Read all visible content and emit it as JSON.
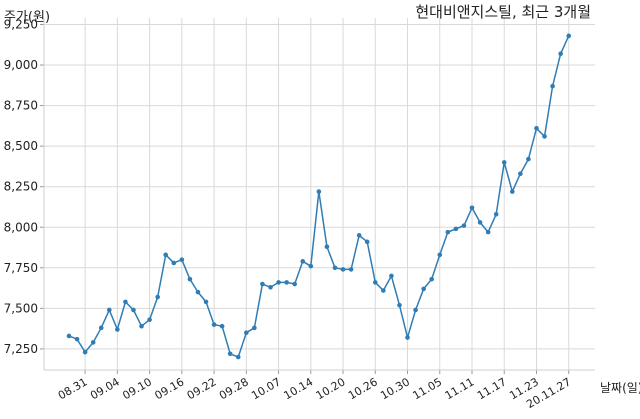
{
  "chart_data": {
    "type": "line",
    "title": "현대비앤지스틸, 최근 3개월",
    "ylabel": "주가(원)",
    "xlabel": "날짜(일)",
    "ylim": [
      7120,
      9290
    ],
    "yticks": [
      7250,
      7500,
      7750,
      8000,
      8250,
      8500,
      8750,
      9000,
      9250
    ],
    "ytick_labels": [
      "7,250",
      "7,500",
      "7,750",
      "8,000",
      "8,250",
      "8,500",
      "8,750",
      "9,000",
      "9,250"
    ],
    "xtick_labels": [
      "08.31",
      "09.04",
      "09.10",
      "09.16",
      "09.22",
      "09.28",
      "10.07",
      "10.14",
      "10.20",
      "10.26",
      "10.30",
      "11.05",
      "11.11",
      "11.17",
      "11.23",
      "20.11.27"
    ],
    "xtick_index": [
      2,
      6,
      10,
      14,
      18,
      22,
      26,
      30,
      34,
      38,
      42,
      46,
      50,
      54,
      58,
      62
    ],
    "grid": true,
    "line_color": "#2f7db4",
    "series": [
      {
        "values": [
          7330,
          7310,
          7230,
          7290,
          7380,
          7490,
          7370,
          7540,
          7490,
          7390,
          7430,
          7570,
          7830,
          7780,
          7800,
          7680,
          7600,
          7540,
          7400,
          7390,
          7220,
          7200,
          7350,
          7380,
          7650,
          7630,
          7660,
          7660,
          7650,
          7790,
          7760,
          8220,
          7880,
          7750,
          7740,
          7740,
          7950,
          7910,
          7660,
          7610,
          7700,
          7520,
          7320,
          7490,
          7620,
          7680,
          7830,
          7970,
          7990,
          8010,
          8120,
          8030,
          7970,
          8080,
          8400,
          8220,
          8330,
          8420,
          8610,
          8560,
          8870,
          9070,
          9180
        ]
      }
    ]
  }
}
